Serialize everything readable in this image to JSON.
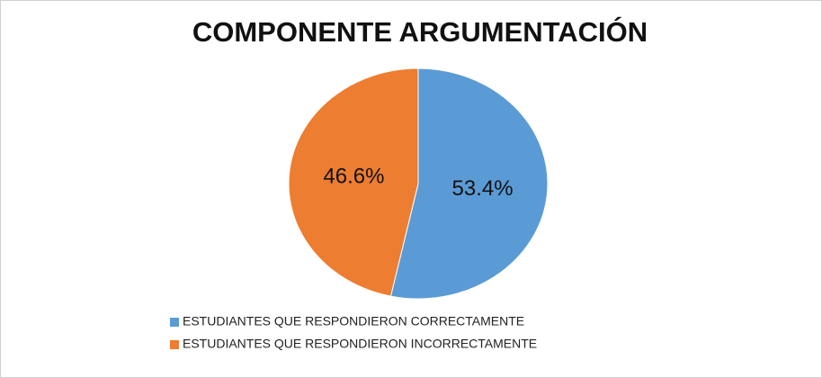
{
  "chart_data": {
    "type": "pie",
    "title": "COMPONENTE ARGUMENTACIÓN",
    "categories": [
      "ESTUDIANTES QUE RESPONDIERON CORRECTAMENTE",
      "ESTUDIANTES QUE RESPONDIERON INCORRECTAMENTE"
    ],
    "values": [
      53.4,
      46.6
    ],
    "value_labels": [
      "53.4%",
      "46.6%"
    ],
    "colors": [
      "#5b9bd5",
      "#ed7d31"
    ]
  }
}
